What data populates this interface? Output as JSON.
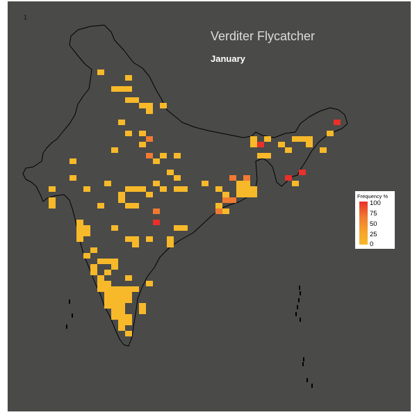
{
  "page_number": "1",
  "title": "Verditer Flycatcher",
  "subtitle": "January",
  "colors": {
    "background": "#4a4a48",
    "outline": "#000000",
    "scale_high": "#e8312a",
    "scale_mid": "#f07a32",
    "scale_low": "#f7b92a"
  },
  "legend": {
    "title": "Frequency %",
    "ticks": [
      "100",
      "75",
      "50",
      "25",
      "0"
    ]
  }
}
